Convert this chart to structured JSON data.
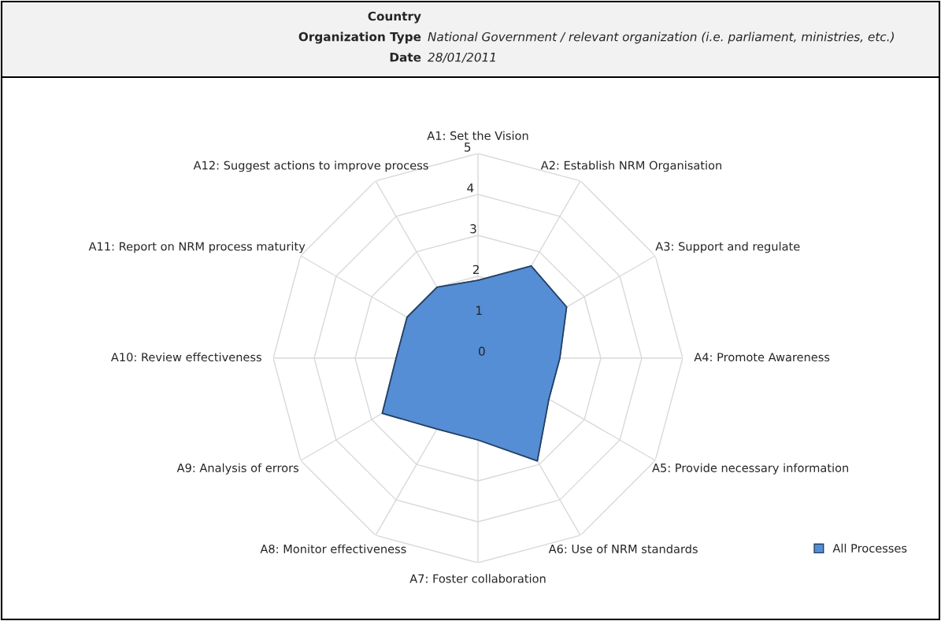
{
  "chart_data": {
    "type": "radar",
    "annotations": [
      "Country",
      "Organization Type",
      "National Government / relevant organization (i.e. parliament, ministries, etc.)",
      "Date",
      "28/01/2011"
    ],
    "categories": [
      "A1: Set the Vision",
      "A2: Establish NRM Organisation",
      "A3: Support and regulate",
      "A4: Promote Awareness",
      "A5: Provide necessary information",
      "A6: Use of NRM standards",
      "A7: Foster collaboration",
      "A8: Monitor effectiveness",
      "A9: Analysis of errors",
      "A10: Review effectiveness",
      "A11: Report on NRM process maturity",
      "A12: Suggest actions to improve process"
    ],
    "series": [
      {
        "name": "All Processes",
        "color": "#558ed5",
        "values": [
          1.9,
          2.6,
          2.5,
          2,
          2,
          2.9,
          2,
          2,
          2.7,
          2,
          2,
          2
        ]
      }
    ],
    "ylim": [
      0,
      5
    ],
    "yticks": [
      0,
      1,
      2,
      3,
      4,
      5
    ],
    "grid": true,
    "legend": "bottom right"
  }
}
